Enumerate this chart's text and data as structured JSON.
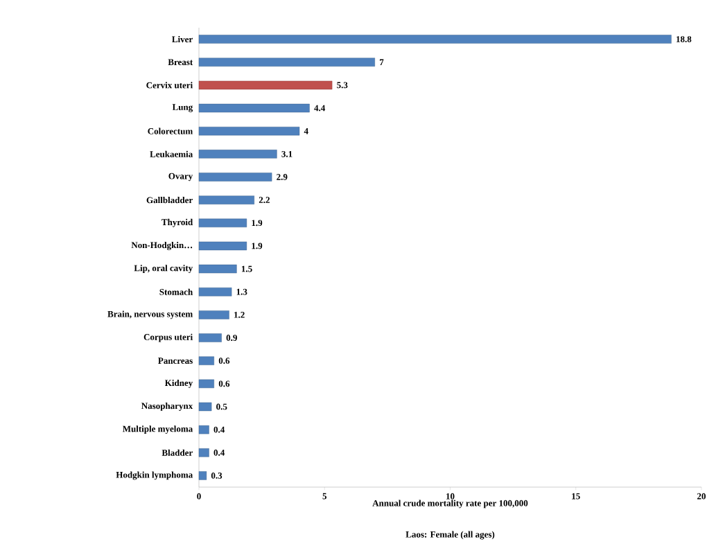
{
  "chart_data": {
    "type": "bar",
    "orientation": "horizontal",
    "categories": [
      "Liver",
      "Breast",
      "Cervix uteri",
      "Lung",
      "Colorectum",
      "Leukaemia",
      "Ovary",
      "Gallbladder",
      "Thyroid",
      "Non-Hodgkin…",
      "Lip, oral cavity",
      "Stomach",
      "Brain, nervous system",
      "Corpus uteri",
      "Pancreas",
      "Kidney",
      "Nasopharynx",
      "Multiple myeloma",
      "Bladder",
      "Hodgkin lymphoma"
    ],
    "values": [
      18.8,
      7,
      5.3,
      4.4,
      4,
      3.1,
      2.9,
      2.2,
      1.9,
      1.9,
      1.5,
      1.3,
      1.2,
      0.9,
      0.6,
      0.6,
      0.5,
      0.4,
      0.4,
      0.3
    ],
    "colors": [
      "#4f81bd",
      "#4f81bd",
      "#c0504d",
      "#4f81bd",
      "#4f81bd",
      "#4f81bd",
      "#4f81bd",
      "#4f81bd",
      "#4f81bd",
      "#4f81bd",
      "#4f81bd",
      "#4f81bd",
      "#4f81bd",
      "#4f81bd",
      "#4f81bd",
      "#4f81bd",
      "#4f81bd",
      "#4f81bd",
      "#4f81bd",
      "#4f81bd"
    ],
    "xlim": [
      0,
      20
    ],
    "xticks": [
      0,
      5,
      10,
      15,
      20
    ],
    "xlabel": "Annual crude mortality rate per 100,000",
    "annotations": [
      "Laos: Female (all ages)"
    ],
    "data_labels": true
  }
}
